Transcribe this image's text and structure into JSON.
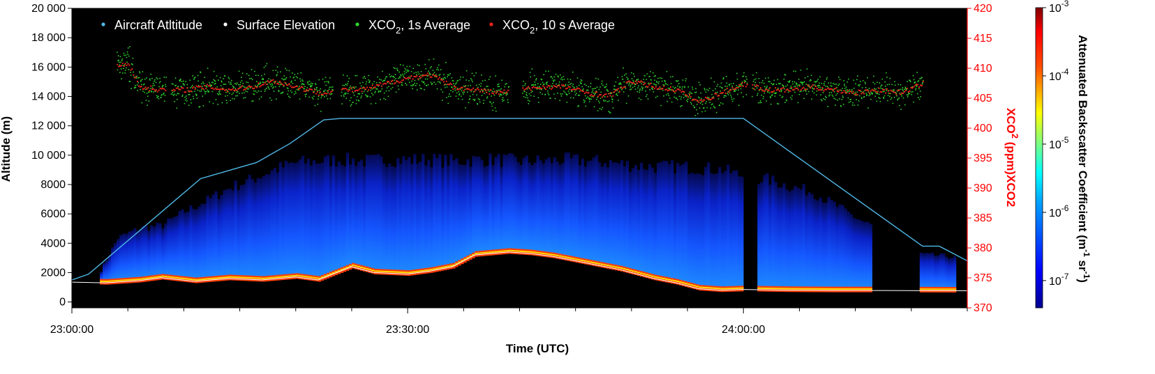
{
  "chart_data": {
    "type": "scatter",
    "xlabel": "Time (UTC)",
    "ylabel_left": "Altitude (m)",
    "ylabel_right": "XCO",
    "ylabel_right_sub": "2",
    "ylabel_right_tail": " (ppm)XCO2",
    "colorbar_label": "Attenuated Backscatter Coefficient (m",
    "colorbar_label_sup1": "-1",
    "colorbar_label_mid": " sr",
    "colorbar_label_sup2": "-1",
    "colorbar_label_end": ")",
    "x_range": [
      "23:00:00",
      "24:20:00"
    ],
    "x_ticks": [
      "23:00:00",
      "23:30:00",
      "24:00:00"
    ],
    "x_tick_minutes": [
      0,
      30,
      60
    ],
    "y_left_range": [
      -400,
      20000
    ],
    "y_left_ticks": [
      0,
      2000,
      4000,
      6000,
      8000,
      10000,
      12000,
      14000,
      16000,
      18000,
      20000
    ],
    "y_left_tick_labels": [
      "0",
      "2000",
      "4000",
      "6000",
      "8000",
      "10 000",
      "12 000",
      "14 000",
      "16 000",
      "18 000",
      "20 000"
    ],
    "y_right_range": [
      370,
      420
    ],
    "y_right_ticks": [
      370,
      375,
      380,
      385,
      390,
      395,
      400,
      405,
      410,
      415,
      420
    ],
    "y_right_tick_labels": [
      "370",
      "375",
      "380",
      "385",
      "390",
      "395",
      "400",
      "405",
      "410",
      "415",
      "420"
    ],
    "colorbar_ticks": [
      {
        "base": "10",
        "exp": "-3",
        "value": -3
      },
      {
        "base": "10",
        "exp": "-4",
        "value": -4
      },
      {
        "base": "10",
        "exp": "-5",
        "value": -5
      },
      {
        "base": "10",
        "exp": "-6",
        "value": -6
      },
      {
        "base": "10",
        "exp": "-7",
        "value": -7
      }
    ],
    "colorbar_range_log10": [
      -7.4,
      -3
    ],
    "legend": [
      {
        "pre": "Aircraft Atltitude",
        "sub": "",
        "post": "",
        "color": "#4fb8e8"
      },
      {
        "pre": "Surface Elevation",
        "sub": "",
        "post": "",
        "color": "#ffffff"
      },
      {
        "pre": "XCO",
        "sub": "2",
        "post": ", 1s Average",
        "color": "#2fd62f"
      },
      {
        "pre": "XCO",
        "sub": "2",
        "post": ", 10 s Average",
        "color": "#e8231b"
      }
    ],
    "legend_placement": "top-left",
    "series": [
      {
        "name": "Aircraft Atltitude",
        "axis": "left",
        "color": "#4fb8e8",
        "x": [
          0,
          1.5,
          11.5,
          16.5,
          19.5,
          22.5,
          24,
          46,
          60,
          76,
          77.5,
          80
        ],
        "y": [
          1500,
          1900,
          8400,
          9500,
          10800,
          12400,
          12500,
          12500,
          12500,
          3800,
          3800,
          2800
        ]
      },
      {
        "name": "Surface Elevation",
        "axis": "left",
        "color": "#ffffff",
        "x": [
          0,
          3,
          6,
          8,
          11,
          14,
          17,
          20,
          22,
          25,
          27,
          30,
          32,
          34,
          36,
          39,
          41,
          43,
          45,
          47,
          49,
          51,
          52,
          54,
          56,
          58,
          60,
          64,
          68,
          72,
          76,
          80
        ],
        "y": [
          1350,
          1300,
          1450,
          1650,
          1400,
          1600,
          1500,
          1700,
          1500,
          2400,
          2000,
          1900,
          2100,
          2400,
          3200,
          3400,
          3300,
          3100,
          2800,
          2500,
          2200,
          1800,
          1600,
          1300,
          900,
          800,
          850,
          800,
          780,
          780,
          770,
          760
        ]
      },
      {
        "name": "XCO2, 10 s Average",
        "axis": "right",
        "color": "#e8231b",
        "x": [
          4,
          5,
          6,
          8,
          10,
          12,
          14,
          16,
          18,
          20,
          22,
          24,
          26,
          28,
          30,
          32,
          34,
          36,
          38,
          40,
          42,
          44,
          46,
          48,
          50,
          52,
          54,
          56,
          58,
          60,
          62,
          64,
          66,
          68,
          70,
          72,
          74,
          76
        ],
        "y": [
          410.5,
          411,
          407,
          406.5,
          406.5,
          407,
          406.5,
          407,
          408,
          407,
          406,
          406.5,
          406.5,
          407.5,
          408.5,
          409,
          407,
          406.5,
          406,
          406.5,
          407,
          407,
          406,
          405.5,
          408,
          407,
          406.5,
          404.5,
          406,
          407.5,
          406.5,
          406.5,
          407,
          406.5,
          406,
          406.5,
          406,
          407.5
        ]
      },
      {
        "name": "XCO2, 1s Average",
        "axis": "right",
        "color": "#2fd62f",
        "x": [
          4,
          5,
          6,
          8,
          10,
          12,
          14,
          16,
          18,
          20,
          22,
          24,
          26,
          28,
          30,
          32,
          34,
          36,
          38,
          40,
          42,
          44,
          46,
          48,
          50,
          52,
          54,
          56,
          58,
          60,
          62,
          64,
          66,
          68,
          70,
          72,
          74,
          76
        ],
        "y": [
          410.5,
          411,
          407,
          406.5,
          406.5,
          407,
          406.5,
          407,
          408,
          407,
          406,
          406.5,
          406.5,
          407.5,
          408.5,
          409,
          407,
          406.5,
          406,
          406.5,
          407,
          407,
          406,
          405.5,
          408,
          407,
          406.5,
          404.5,
          406,
          407.5,
          406.5,
          406.5,
          407,
          406.5,
          406,
          406.5,
          406,
          407.5
        ],
        "spread_ppm": 2.5
      }
    ],
    "backscatter_top_profile": {
      "x": [
        2.5,
        4,
        6,
        8,
        10,
        12,
        14,
        16,
        18,
        20,
        22,
        24,
        26,
        28,
        30,
        32,
        34,
        36,
        38,
        40,
        42,
        44,
        46,
        48,
        50,
        52,
        54,
        56,
        58,
        60,
        62,
        64,
        66,
        68,
        70,
        72,
        74,
        76,
        78,
        79
      ],
      "y": [
        2300,
        4600,
        5300,
        5500,
        6500,
        7300,
        8200,
        8800,
        9500,
        10000,
        10100,
        10200,
        10100,
        10200,
        10200,
        10200,
        10100,
        10200,
        10200,
        10100,
        10100,
        10200,
        10100,
        10000,
        9800,
        9700,
        9700,
        9600,
        9500,
        9000,
        8800,
        8300,
        7900,
        7000,
        6000,
        5200,
        4200,
        3400,
        3300,
        3100
      ]
    },
    "backscatter_gaps_minutes": [
      [
        60,
        61.2
      ],
      [
        71.5,
        75.5
      ]
    ],
    "colors": {
      "background": "#000000",
      "left_axis": "#000000",
      "right_axis": "#ff0000"
    }
  }
}
